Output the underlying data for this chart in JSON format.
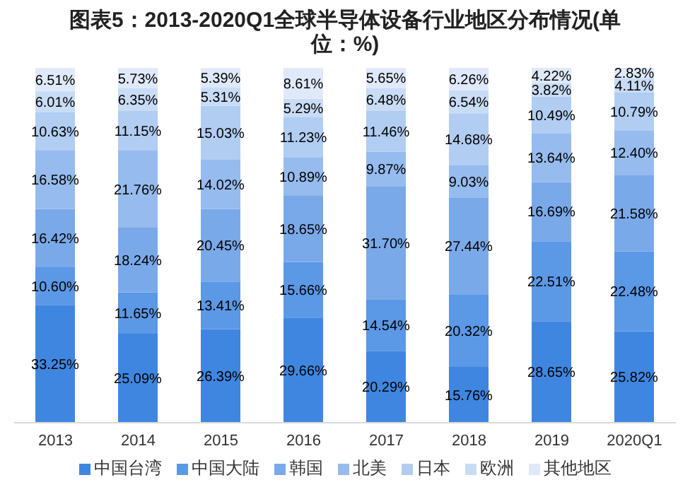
{
  "chart_data": {
    "type": "bar",
    "title": "图表5：2013-2020Q1全球半导体设备行业地区分布情况(单位：%)",
    "categories": [
      "2013",
      "2014",
      "2015",
      "2016",
      "2017",
      "2018",
      "2019",
      "2020Q1"
    ],
    "stacked": true,
    "legend": "bottom",
    "grid": false,
    "tick_labels": "x",
    "series": [
      {
        "name": "中国台湾",
        "color": "#3f86e0",
        "values": [
          33.25,
          25.09,
          26.39,
          29.66,
          20.29,
          15.76,
          28.65,
          25.82
        ],
        "value_labels": [
          "33.25%",
          "25.09%",
          "26.39%",
          "29.66%",
          "20.29%",
          "15.76%",
          "28.65%",
          "25.82%"
        ]
      },
      {
        "name": "中国大陆",
        "color": "#5b98e6",
        "values": [
          10.6,
          11.65,
          13.41,
          15.66,
          14.54,
          20.32,
          22.51,
          22.48
        ],
        "value_labels": [
          "10.60%",
          "11.65%",
          "13.41%",
          "15.66%",
          "14.54%",
          "20.32%",
          "22.51%",
          "22.48%"
        ]
      },
      {
        "name": "韩国",
        "color": "#7aa9ea",
        "values": [
          16.42,
          18.24,
          20.45,
          18.65,
          31.7,
          27.44,
          16.69,
          21.58
        ],
        "value_labels": [
          "16.42%",
          "18.24%",
          "20.45%",
          "18.65%",
          "31.70%",
          "27.44%",
          "16.69%",
          "21.58%"
        ]
      },
      {
        "name": "北美",
        "color": "#96bbee",
        "values": [
          16.58,
          21.76,
          14.02,
          10.89,
          9.87,
          9.03,
          13.64,
          12.4
        ],
        "value_labels": [
          "16.58%",
          "21.76%",
          "14.02%",
          "10.89%",
          "9.87%",
          "9.03%",
          "13.64%",
          "12.40%"
        ]
      },
      {
        "name": "日本",
        "color": "#b1cdf2",
        "values": [
          10.63,
          11.15,
          15.03,
          11.23,
          11.46,
          14.68,
          10.49,
          10.79
        ],
        "value_labels": [
          "10.63%",
          "11.15%",
          "15.03%",
          "11.23%",
          "11.46%",
          "14.68%",
          "10.49%",
          "10.79%"
        ]
      },
      {
        "name": "欧洲",
        "color": "#c9dcf6",
        "values": [
          6.01,
          6.35,
          5.31,
          5.29,
          6.48,
          6.54,
          3.82,
          4.11
        ],
        "value_labels": [
          "6.01%",
          "6.35%",
          "5.31%",
          "5.29%",
          "6.48%",
          "6.54%",
          "3.82%",
          "4.11%"
        ]
      },
      {
        "name": "其他地区",
        "color": "#dfe9f9",
        "values": [
          6.51,
          5.73,
          5.39,
          8.61,
          5.65,
          6.26,
          4.22,
          2.83
        ],
        "value_labels": [
          "6.51%",
          "5.73%",
          "5.39%",
          "8.61%",
          "5.65%",
          "6.26%",
          "4.22%",
          "2.83%"
        ]
      }
    ]
  }
}
